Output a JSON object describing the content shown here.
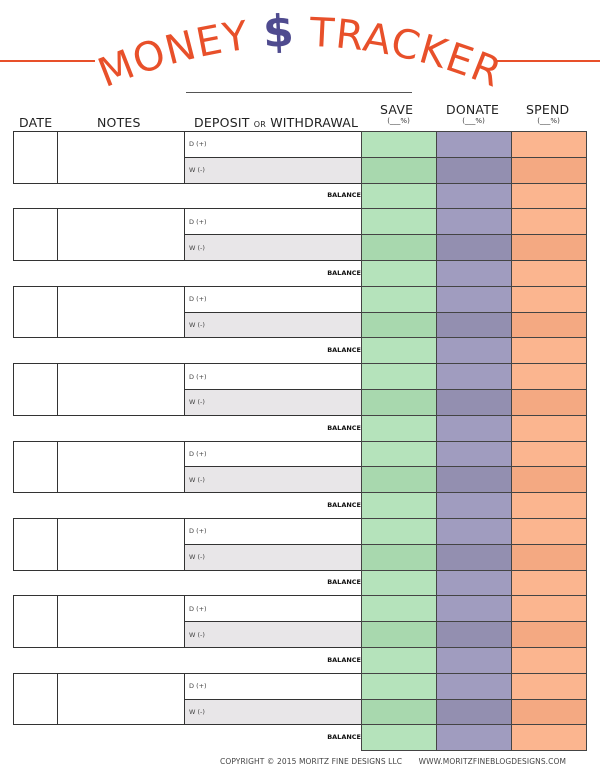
{
  "title": {
    "word1": "MONEY",
    "symbol": "$",
    "word2": "TRACKER"
  },
  "colors": {
    "title": "#e8502a",
    "symbol": "#4f4b8f",
    "save": "#b5e3bb",
    "save_dark": "#a8d8ae",
    "donate": "#a09cbf",
    "donate_dark": "#938fb0",
    "spend": "#fbb58f",
    "spend_dark": "#f4a982",
    "withdraw_bg": "#e8e6e8"
  },
  "headers": {
    "date": "DATE",
    "notes": "NOTES",
    "deposit": "DEPOSIT",
    "or": "OR",
    "withdrawal": "WITHDRAWAL",
    "save": "SAVE",
    "donate": "DONATE",
    "spend": "SPEND",
    "percent": "(___%)"
  },
  "row_labels": {
    "deposit": "D (+)",
    "withdraw": "W (-)",
    "balance": "BALANCE"
  },
  "entries": [
    {},
    {},
    {},
    {},
    {},
    {},
    {},
    {}
  ],
  "footer": {
    "copyright": "COPYRIGHT © 2015 MORITZ FINE DESIGNS LLC",
    "website": "WWW.MORITZFINEBLOGDESIGNS.COM"
  }
}
